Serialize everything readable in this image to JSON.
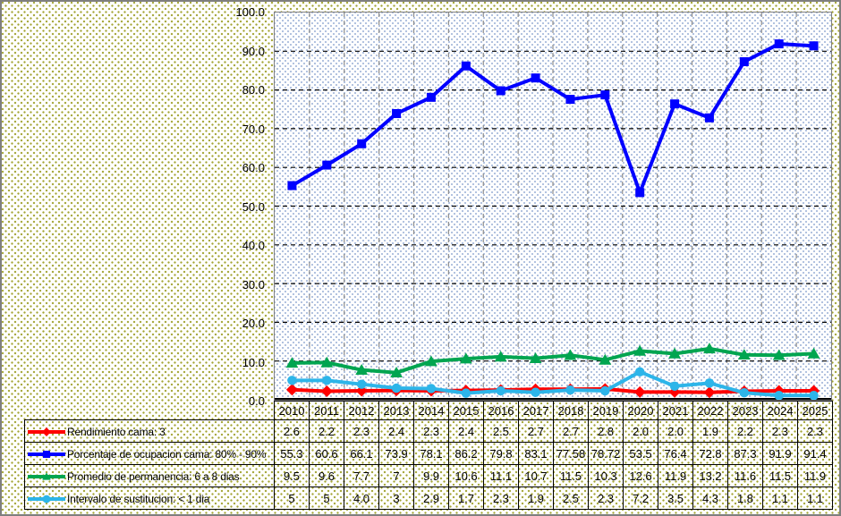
{
  "chart_data": {
    "type": "line",
    "title": "",
    "xlabel": "",
    "ylabel": "",
    "ylim": [
      0,
      100
    ],
    "grid": true,
    "legend_position": "data-table-left",
    "y_ticks": [
      "100.0",
      "90.0",
      "80.0",
      "70.0",
      "60.0",
      "50.0",
      "40.0",
      "30.0",
      "20.0",
      "10.0",
      "0.0"
    ],
    "categories": [
      "2010",
      "2011",
      "2012",
      "2013",
      "2014",
      "2015",
      "2016",
      "2017",
      "2018",
      "2019",
      "2020",
      "2021",
      "2022",
      "2023",
      "2024",
      "2025"
    ],
    "series": [
      {
        "name": "Rendimiento cama: 3",
        "color": "#FF0000",
        "marker": "diamond",
        "values": [
          2.6,
          2.2,
          2.3,
          2.4,
          2.3,
          2.4,
          2.5,
          2.7,
          2.7,
          2.8,
          2.0,
          2.0,
          1.9,
          2.2,
          2.3,
          2.3
        ],
        "display": [
          "2.6",
          "2.2",
          "2.3",
          "2.4",
          "2.3",
          "2.4",
          "2.5",
          "2.7",
          "2.7",
          "2.8",
          "2.0",
          "2.0",
          "1.9",
          "2.2",
          "2.3",
          "2.3"
        ]
      },
      {
        "name": "Porcentaje de ocupacion cama: 80% - 90%",
        "color": "#0000FF",
        "marker": "square",
        "values": [
          55.3,
          60.6,
          66.1,
          73.9,
          78.1,
          86.2,
          79.8,
          83.1,
          77.58,
          78.72,
          53.5,
          76.4,
          72.8,
          87.3,
          91.9,
          91.4
        ],
        "display": [
          "55.3",
          "60.6",
          "66.1",
          "73.9",
          "78.1",
          "86.2",
          "79.8",
          "83.1",
          "77.58",
          "78.72",
          "53.5",
          "76.4",
          "72.8",
          "87.3",
          "91.9",
          "91.4"
        ]
      },
      {
        "name": "Promedio de permanencia: 6 a 8 dias",
        "color": "#00A550",
        "marker": "triangle",
        "values": [
          9.5,
          9.6,
          7.7,
          7,
          9.9,
          10.6,
          11.1,
          10.7,
          11.5,
          10.3,
          12.6,
          11.9,
          13.2,
          11.6,
          11.5,
          11.9
        ],
        "display": [
          "9.5",
          "9.6",
          "7.7",
          "7",
          "9.9",
          "10.6",
          "11.1",
          "10.7",
          "11.5",
          "10.3",
          "12.6",
          "11.9",
          "13.2",
          "11.6",
          "11.5",
          "11.9"
        ]
      },
      {
        "name": "Intervalo de sustitucion: < 1 dia",
        "color": "#2DB5E9",
        "marker": "circle",
        "values": [
          5,
          5,
          4.0,
          3,
          2.9,
          1.7,
          2.3,
          1.9,
          2.5,
          2.3,
          7.2,
          3.5,
          4.3,
          1.8,
          1.1,
          1.1
        ],
        "display": [
          "5",
          "5",
          "4.0",
          "3",
          "2.9",
          "1.7",
          "2.3",
          "1.9",
          "2.5",
          "2.3",
          "7.2",
          "3.5",
          "4.3",
          "1.8",
          "1.1",
          "1.1"
        ]
      }
    ],
    "style": {
      "background_dot_color": "#A3A433",
      "plot_dot_color": "#A9BCDC",
      "h_gridline_color": "#000000",
      "v_gridline_color": "#8C8C8C",
      "plot_border_color": "#7F7F7F",
      "axis_color": "#000000",
      "table_border_color": "#000000"
    }
  }
}
